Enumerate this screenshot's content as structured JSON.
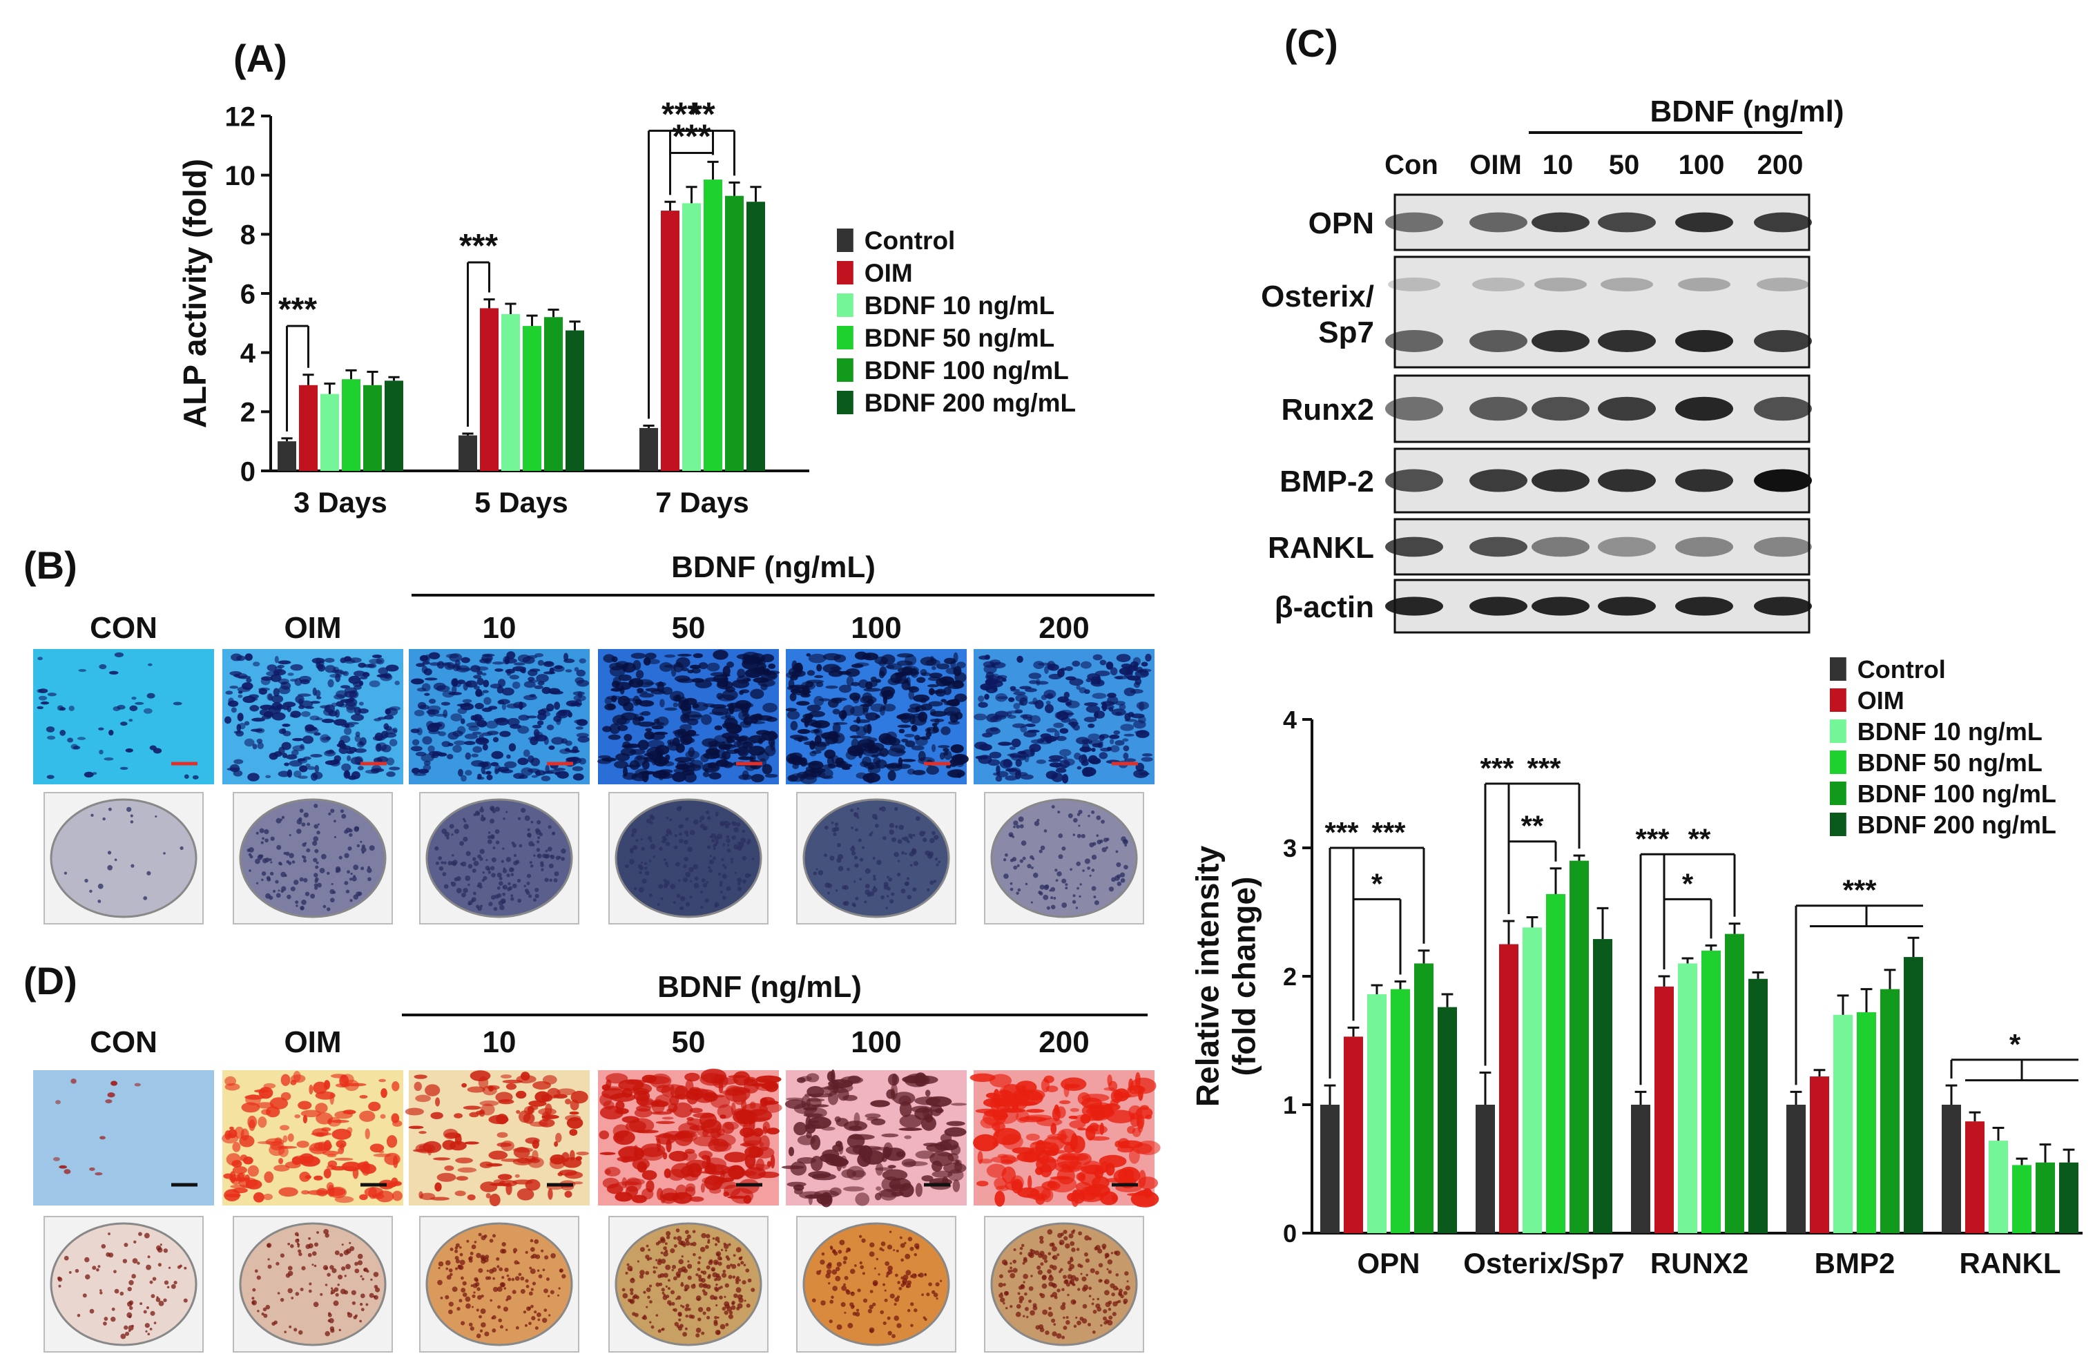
{
  "colors": {
    "Control": "#333333",
    "OIM": "#c1121f",
    "BDNF_10": "#74f598",
    "BDNF_50": "#1fd12f",
    "BDNF_100": "#119a1b",
    "BDNF_200": "#0a5a1c",
    "black": "#111111",
    "err": "#111111"
  },
  "panel_labels": {
    "A": "(A)",
    "B": "(B)",
    "C": "(C)",
    "D": "(D)"
  },
  "image_panels": {
    "B": {
      "group_label": "BDNF (ng/mL)",
      "columns": [
        "CON",
        "OIM",
        "10",
        "50",
        "100",
        "200"
      ],
      "micrograph_style": "ALP staining, blue",
      "well_style": "whole-well ALP staining, purple-grey"
    },
    "D": {
      "group_label": "BDNF (ng/mL)",
      "columns": [
        "CON",
        "OIM",
        "10",
        "50",
        "100",
        "200"
      ],
      "micrograph_style": "Alizarin red staining, red/orange",
      "well_style": "whole-well Alizarin red staining, orange-brown"
    }
  },
  "western_blot": {
    "group_label": "BDNF (ng/ml)",
    "lanes": [
      "Con",
      "OIM",
      "10",
      "50",
      "100",
      "200"
    ],
    "rows": [
      "OPN",
      "Osterix/\nSp7",
      "Runx2",
      "BMP-2",
      "RANKL",
      "β-actin"
    ]
  },
  "chart_data": [
    {
      "type": "bar",
      "panel": "A",
      "ylabel": "ALP activity (fold)",
      "xlabel": "",
      "ylim": [
        0,
        12
      ],
      "yticks": [
        0,
        2,
        4,
        6,
        8,
        10,
        12
      ],
      "categories": [
        "3 Days",
        "5 Days",
        "7 Days"
      ],
      "legend_position": "right",
      "series": [
        {
          "name": "Control",
          "color_key": "Control",
          "values": [
            1.0,
            1.2,
            1.45
          ],
          "errors": [
            0.1,
            0.06,
            0.08
          ]
        },
        {
          "name": "OIM",
          "color_key": "OIM",
          "values": [
            2.9,
            5.5,
            8.8
          ],
          "errors": [
            0.35,
            0.3,
            0.3
          ]
        },
        {
          "name": "BDNF 10 ng/mL",
          "color_key": "BDNF_10",
          "values": [
            2.6,
            5.3,
            9.05
          ],
          "errors": [
            0.35,
            0.35,
            0.55
          ]
        },
        {
          "name": "BDNF 50 ng/mL",
          "color_key": "BDNF_50",
          "values": [
            3.1,
            4.9,
            9.85
          ],
          "errors": [
            0.3,
            0.35,
            0.6
          ]
        },
        {
          "name": "BDNF 100 ng/mL",
          "color_key": "BDNF_100",
          "values": [
            2.9,
            5.2,
            9.3
          ],
          "errors": [
            0.45,
            0.25,
            0.45
          ]
        },
        {
          "name": "BDNF 200 mg/mL",
          "color_key": "BDNF_200",
          "values": [
            3.05,
            4.75,
            9.1
          ],
          "errors": [
            0.12,
            0.3,
            0.5
          ]
        }
      ],
      "annotations": [
        {
          "text": "***",
          "category": 0,
          "from": 0,
          "to": 1,
          "level": 4.9
        },
        {
          "text": "***",
          "category": 1,
          "from": 0,
          "to": 1,
          "level": 7.05
        },
        {
          "text": "***",
          "category": 2,
          "from": 0,
          "to": 3,
          "level": 11.5
        },
        {
          "text": "***",
          "category": 2,
          "from": 1,
          "to": 3,
          "level": 10.75
        },
        {
          "text": "**",
          "category": 2,
          "from": 1,
          "to": 4,
          "level": 11.5
        }
      ]
    },
    {
      "type": "bar",
      "panel": "C",
      "ylabel": "Relative intensity\n(fold change)",
      "xlabel": "",
      "ylim": [
        0,
        4
      ],
      "yticks": [
        0,
        1,
        2,
        3,
        4
      ],
      "categories": [
        "OPN",
        "Osterix/Sp7",
        "RUNX2",
        "BMP2",
        "RANKL"
      ],
      "legend_position": "top-right",
      "series": [
        {
          "name": "Control",
          "color_key": "Control",
          "values": [
            1.0,
            1.0,
            1.0,
            1.0,
            1.0
          ],
          "errors": [
            0.15,
            0.25,
            0.1,
            0.1,
            0.15
          ]
        },
        {
          "name": "OIM",
          "color_key": "OIM",
          "values": [
            1.53,
            2.25,
            1.92,
            1.22,
            0.87
          ],
          "errors": [
            0.07,
            0.18,
            0.08,
            0.05,
            0.07
          ]
        },
        {
          "name": "BDNF 10 ng/mL",
          "color_key": "BDNF_10",
          "values": [
            1.86,
            2.38,
            2.1,
            1.7,
            0.72
          ],
          "errors": [
            0.07,
            0.08,
            0.04,
            0.15,
            0.1
          ]
        },
        {
          "name": "BDNF 50 ng/mL",
          "color_key": "BDNF_50",
          "values": [
            1.9,
            2.64,
            2.2,
            1.72,
            0.53
          ],
          "errors": [
            0.06,
            0.2,
            0.04,
            0.18,
            0.05
          ]
        },
        {
          "name": "BDNF 100 ng/mL",
          "color_key": "BDNF_100",
          "values": [
            2.1,
            2.9,
            2.33,
            1.9,
            0.55
          ],
          "errors": [
            0.1,
            0.04,
            0.08,
            0.15,
            0.14
          ]
        },
        {
          "name": "BDNF 200 ng/mL",
          "color_key": "BDNF_200",
          "values": [
            1.76,
            2.29,
            1.98,
            2.15,
            0.55
          ],
          "errors": [
            0.1,
            0.24,
            0.05,
            0.15,
            0.1
          ]
        }
      ],
      "annotations": [
        {
          "text": "***",
          "category": 0,
          "from": 0,
          "to": 1,
          "level": 3.0
        },
        {
          "text": "***",
          "category": 0,
          "from": 1,
          "to": 4,
          "level": 3.0
        },
        {
          "text": "*",
          "category": 0,
          "from": 1,
          "to": 3,
          "level": 2.6,
          "bracket_right": true
        },
        {
          "text": "***",
          "category": 1,
          "from": 0,
          "to": 1,
          "level": 3.5
        },
        {
          "text": "***",
          "category": 1,
          "from": 1,
          "to": 4,
          "level": 3.5
        },
        {
          "text": "**",
          "category": 1,
          "from": 1,
          "to": 3,
          "level": 3.05
        },
        {
          "text": "***",
          "category": 2,
          "from": 0,
          "to": 1,
          "level": 2.95
        },
        {
          "text": "**",
          "category": 2,
          "from": 1,
          "to": 4,
          "level": 2.95
        },
        {
          "text": "*",
          "category": 2,
          "from": 1,
          "to": 3,
          "level": 2.6
        },
        {
          "text": "***",
          "category": 3,
          "from": 0,
          "to": 5,
          "level": 2.55,
          "tee": true
        },
        {
          "text": "*",
          "category": 4,
          "from": 0,
          "to": 5,
          "level": 1.35,
          "tee": true
        }
      ]
    }
  ]
}
